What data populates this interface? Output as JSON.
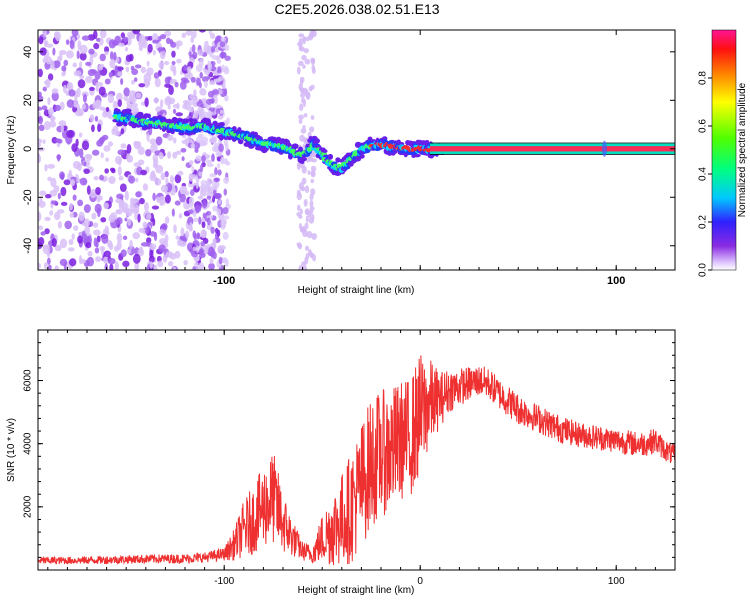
{
  "title": "C2E5.2026.038.02.51.E13",
  "chart_data": [
    {
      "type": "heatmap",
      "xlabel": "Height of straight line (km)",
      "ylabel": "Frequency (Hz)",
      "xlim": [
        -195,
        130
      ],
      "ylim": [
        -50,
        49
      ],
      "x_ticks": [
        -100,
        0,
        100
      ],
      "x_tick_labels": [
        "-100",
        "",
        "100"
      ],
      "y_ticks": [
        -40,
        -20,
        0,
        20,
        40
      ],
      "y_tick_labels": [
        "-40",
        "-20",
        "0",
        "20",
        "40"
      ],
      "ridge_x": [
        -150,
        -140,
        -130,
        -120,
        -110,
        -100,
        -90,
        -80,
        -70,
        -60,
        -55,
        -50,
        -45,
        -40,
        -35,
        -30,
        -25,
        -20,
        -15,
        -10,
        -5,
        0,
        5,
        10,
        130
      ],
      "ridge_y": [
        13,
        11,
        10,
        9,
        9,
        7,
        5,
        2,
        1,
        -3,
        2,
        -2,
        -7,
        -8,
        -4,
        0,
        1,
        2,
        1,
        0,
        0,
        0,
        0,
        0,
        0
      ],
      "colorbar": {
        "label": "Normalized spectral amplitude",
        "range": [
          0,
          1
        ],
        "ticks": [
          0.0,
          0.2,
          0.4,
          0.6,
          0.8
        ],
        "tick_labels": [
          "0.0",
          "0.2",
          "0.4",
          "0.6",
          "0.8"
        ]
      }
    },
    {
      "type": "line",
      "xlabel": "Height of straight line (km)",
      "ylabel": "SNR (10 * v/v)",
      "xlim": [
        -195,
        130
      ],
      "ylim": [
        0,
        7600
      ],
      "x_ticks": [
        -100,
        0,
        100
      ],
      "x_tick_labels": [
        "-100",
        "0",
        "100"
      ],
      "y_ticks": [
        2000,
        4000,
        6000
      ],
      "y_tick_labels": [
        "2000",
        "4000",
        "6000"
      ],
      "series": [
        {
          "name": "SNR",
          "color": "#ee3030",
          "x": [
            -195,
            -180,
            -160,
            -140,
            -120,
            -110,
            -100,
            -95,
            -90,
            -85,
            -80,
            -75,
            -70,
            -65,
            -60,
            -55,
            -50,
            -45,
            -40,
            -35,
            -30,
            -25,
            -20,
            -15,
            -10,
            -5,
            0,
            5,
            10,
            15,
            20,
            25,
            30,
            35,
            40,
            50,
            60,
            70,
            80,
            90,
            100,
            110,
            115,
            120,
            125,
            130
          ],
          "y": [
            300,
            300,
            320,
            350,
            360,
            400,
            500,
            800,
            1300,
            1600,
            2000,
            2300,
            1500,
            1000,
            600,
            500,
            1000,
            1300,
            1600,
            2000,
            2700,
            3400,
            3700,
            3800,
            4100,
            4200,
            4900,
            5300,
            5400,
            5700,
            5800,
            5900,
            6000,
            5900,
            5600,
            5100,
            4800,
            4500,
            4300,
            4200,
            4100,
            4000,
            4000,
            4100,
            3800,
            3600
          ],
          "amplitude": [
            120,
            120,
            130,
            140,
            150,
            160,
            200,
            500,
            900,
            1100,
            1300,
            1500,
            1000,
            600,
            300,
            300,
            800,
            1200,
            1500,
            1800,
            2000,
            2100,
            2000,
            2000,
            1900,
            1900,
            2000,
            1400,
            900,
            700,
            600,
            550,
            500,
            500,
            500,
            500,
            450,
            450,
            400,
            400,
            400,
            400,
            400,
            400,
            350,
            350
          ]
        }
      ]
    }
  ]
}
